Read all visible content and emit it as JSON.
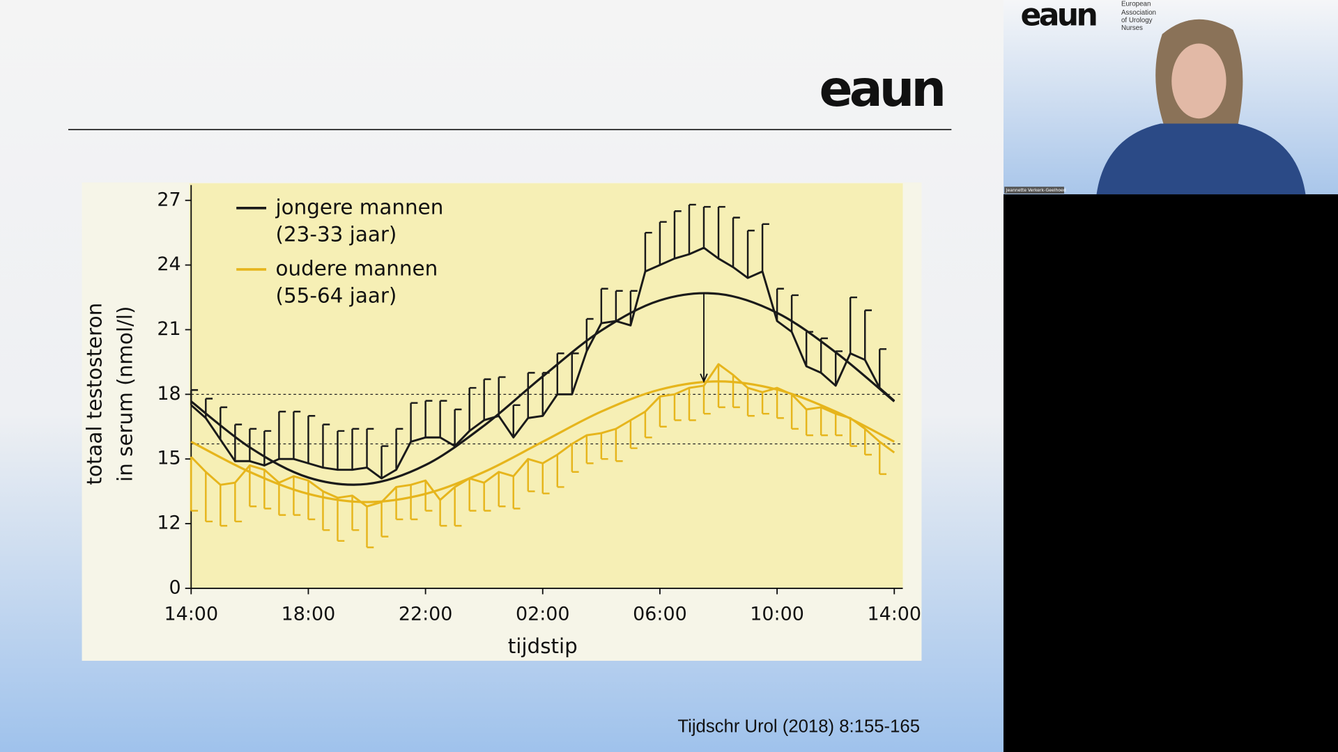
{
  "slide": {
    "logo": "eaun",
    "citation": "Tijdschr Urol (2018) 8:155-165"
  },
  "video": {
    "logo": "eaun",
    "org": [
      "European",
      "Association",
      "of Urology",
      "Nurses"
    ],
    "speaker": "Jeannette Verkerk-Geelhoed"
  },
  "chart_data": {
    "type": "line",
    "xlabel": "tijdstip",
    "ylabel": [
      "totaal testosteron",
      "in serum (nmol/l)"
    ],
    "x": [
      0,
      0.5,
      1,
      1.5,
      2,
      2.5,
      3,
      3.5,
      4,
      4.5,
      5,
      5.5,
      6,
      6.5,
      7,
      7.5,
      8,
      8.5,
      9,
      9.5,
      10,
      10.5,
      11,
      11.5,
      12,
      12.5,
      13,
      13.5,
      14,
      14.5,
      15,
      15.5,
      16,
      16.5,
      17,
      17.5,
      18,
      18.5,
      19,
      19.5,
      20,
      20.5,
      21,
      21.5,
      22,
      22.5,
      23,
      23.5,
      24
    ],
    "series": [
      {
        "name": "jongere mannen",
        "group": "(23-33 jaar)",
        "color": "#1a1a1a",
        "error_dir": "up",
        "values": [
          17.5,
          16.9,
          15.9,
          14.9,
          14.9,
          14.7,
          15.0,
          15.0,
          14.8,
          14.6,
          14.5,
          14.5,
          14.6,
          14.1,
          14.5,
          15.8,
          16.0,
          16.0,
          15.6,
          16.3,
          16.8,
          17.0,
          16.0,
          16.9,
          17.0,
          18.0,
          18.0,
          20.0,
          21.3,
          21.4,
          21.2,
          23.7,
          24.0,
          24.3,
          24.5,
          24.8,
          24.3,
          23.9,
          23.4,
          23.7,
          21.4,
          20.9,
          19.3,
          19.0,
          18.4,
          19.9,
          19.6,
          18.3,
          17.7
        ],
        "errors": [
          0.7,
          0.9,
          1.5,
          1.7,
          1.5,
          1.6,
          2.2,
          2.2,
          2.2,
          2.0,
          1.8,
          1.9,
          1.8,
          1.5,
          1.9,
          1.8,
          1.7,
          1.7,
          1.7,
          2.0,
          1.9,
          1.8,
          1.5,
          2.1,
          2.0,
          1.9,
          1.9,
          1.5,
          1.6,
          1.4,
          1.6,
          1.8,
          2.0,
          2.2,
          2.3,
          1.9,
          2.4,
          2.3,
          2.2,
          2.2,
          1.5,
          1.7,
          1.6,
          1.6,
          1.6,
          2.6,
          2.3,
          1.8,
          0
        ],
        "fit_x": [
          0,
          2,
          4,
          6,
          8,
          10,
          12,
          14,
          16,
          18,
          20,
          22,
          24
        ],
        "fit": [
          17.67,
          15.54,
          14.14,
          13.84,
          14.72,
          16.55,
          18.83,
          20.96,
          22.36,
          22.66,
          21.78,
          19.95,
          17.67
        ]
      },
      {
        "name": "oudere mannen",
        "group": "(55-64 jaar)",
        "color": "#e6b51c",
        "error_dir": "down",
        "values": [
          15.1,
          14.4,
          13.8,
          13.9,
          14.7,
          14.5,
          13.9,
          14.2,
          14.0,
          13.5,
          13.2,
          13.3,
          12.8,
          13.0,
          13.7,
          13.8,
          14.0,
          13.1,
          13.7,
          14.1,
          13.9,
          14.4,
          14.2,
          15.0,
          14.8,
          15.2,
          15.7,
          16.1,
          16.2,
          16.4,
          16.8,
          17.2,
          17.9,
          18.0,
          18.3,
          18.4,
          19.4,
          18.9,
          18.3,
          18.1,
          18.3,
          18.0,
          17.3,
          17.4,
          17.1,
          16.9,
          16.4,
          15.8,
          15.3
        ],
        "errors": [
          2.5,
          2.3,
          1.9,
          1.8,
          1.9,
          1.8,
          1.5,
          1.8,
          1.8,
          1.8,
          2.0,
          1.6,
          1.9,
          1.6,
          1.5,
          1.6,
          1.4,
          1.2,
          1.8,
          1.5,
          1.3,
          1.6,
          1.5,
          1.5,
          1.4,
          1.5,
          1.3,
          1.3,
          1.2,
          1.5,
          1.3,
          1.2,
          1.4,
          1.2,
          1.5,
          1.3,
          2.0,
          1.5,
          1.3,
          1.0,
          1.4,
          1.6,
          1.2,
          1.3,
          1.0,
          1.3,
          1.2,
          1.5,
          0
        ],
        "fit_x": [
          0,
          2,
          4,
          6,
          8,
          10,
          12,
          14,
          16,
          18,
          20,
          22,
          24
        ],
        "fit": [
          15.8,
          14.4,
          13.38,
          13.0,
          13.38,
          14.4,
          15.8,
          17.2,
          18.22,
          18.6,
          18.22,
          17.2,
          15.8
        ]
      }
    ],
    "reference_lines": [
      18,
      15.7
    ],
    "arrow": {
      "x": 17.5,
      "from": 22.7,
      "to": 18.6
    },
    "xlim": [
      0,
      24
    ],
    "xticks": [
      {
        "value": 0,
        "label": "14:00"
      },
      {
        "value": 4,
        "label": "18:00"
      },
      {
        "value": 8,
        "label": "22:00"
      },
      {
        "value": 12,
        "label": "02:00"
      },
      {
        "value": 16,
        "label": "06:00"
      },
      {
        "value": 20,
        "label": "10:00"
      },
      {
        "value": 24,
        "label": "14:00"
      }
    ],
    "ylim": [
      0,
      27
    ],
    "ybreak": [
      0,
      9
    ],
    "yticks": [
      0,
      12,
      15,
      18,
      21,
      24,
      27
    ],
    "plot_color": "#f6efb5"
  }
}
